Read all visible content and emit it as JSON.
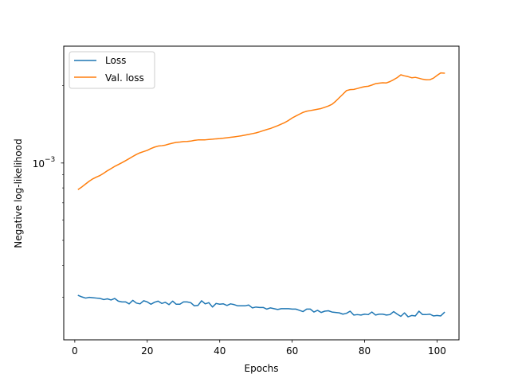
{
  "chart_data": {
    "type": "line",
    "title": "",
    "xlabel": "Epochs",
    "ylabel": "Negative log-likelihood",
    "yscale": "log",
    "xlim": [
      -3.05,
      106.05
    ],
    "ylim": [
      0.000205,
      0.00285
    ],
    "xticks": [
      0,
      20,
      40,
      60,
      80,
      100
    ],
    "xtick_labels": [
      "0",
      "20",
      "40",
      "60",
      "80",
      "100"
    ],
    "yticks": [
      0.001
    ],
    "ytick_labels": [
      "10",
      "−3"
    ],
    "legend": {
      "position": "upper-left"
    },
    "series": [
      {
        "name": "Loss",
        "color": "#1f77b4",
        "x": [
          1,
          2,
          3,
          4,
          5,
          6,
          7,
          8,
          9,
          10,
          11,
          12,
          13,
          14,
          15,
          16,
          17,
          18,
          19,
          20,
          21,
          22,
          23,
          24,
          25,
          26,
          27,
          28,
          29,
          30,
          31,
          32,
          33,
          34,
          35,
          36,
          37,
          38,
          39,
          40,
          41,
          42,
          43,
          44,
          45,
          46,
          47,
          48,
          49,
          50,
          51,
          52,
          53,
          54,
          55,
          56,
          57,
          58,
          59,
          60,
          61,
          62,
          63,
          64,
          65,
          66,
          67,
          68,
          69,
          70,
          71,
          72,
          73,
          74,
          75,
          76,
          77,
          78,
          79,
          80,
          81,
          82,
          83,
          84,
          85,
          86,
          87,
          88,
          89,
          90,
          91,
          92,
          93,
          94,
          95,
          96,
          97,
          98,
          99,
          100,
          101,
          102
        ],
        "y": [
          0.000305,
          0.000301,
          0.000298,
          0.0003,
          0.000299,
          0.000298,
          0.000297,
          0.000294,
          0.000296,
          0.000293,
          0.000297,
          0.00029,
          0.000288,
          0.000288,
          0.000283,
          0.000292,
          0.000285,
          0.000283,
          0.000291,
          0.000288,
          0.000282,
          0.000287,
          0.00029,
          0.000284,
          0.000287,
          0.000281,
          0.00029,
          0.000282,
          0.000282,
          0.000288,
          0.000288,
          0.000286,
          0.000278,
          0.000279,
          0.000291,
          0.000283,
          0.000286,
          0.000275,
          0.000284,
          0.000282,
          0.000283,
          0.000279,
          0.000283,
          0.000281,
          0.000278,
          0.000278,
          0.000278,
          0.00028,
          0.000273,
          0.000275,
          0.000274,
          0.000274,
          0.00027,
          0.000273,
          0.000271,
          0.000269,
          0.000271,
          0.000271,
          0.000271,
          0.00027,
          0.00027,
          0.000267,
          0.000264,
          0.00027,
          0.00027,
          0.000263,
          0.000267,
          0.000262,
          0.000265,
          0.000266,
          0.000263,
          0.000262,
          0.000261,
          0.000258,
          0.00026,
          0.000265,
          0.000256,
          0.000257,
          0.000256,
          0.000258,
          0.000257,
          0.000263,
          0.000256,
          0.000258,
          0.000258,
          0.000256,
          0.000257,
          0.000264,
          0.000258,
          0.000253,
          0.000261,
          0.000252,
          0.000255,
          0.000254,
          0.000265,
          0.000257,
          0.000257,
          0.000258,
          0.000254,
          0.000255,
          0.000254,
          0.000262
        ]
      },
      {
        "name": "Val. loss",
        "color": "#ff7f0e",
        "x": [
          1,
          2,
          3,
          4,
          5,
          6,
          7,
          8,
          9,
          10,
          11,
          12,
          13,
          14,
          15,
          16,
          17,
          18,
          19,
          20,
          21,
          22,
          23,
          24,
          25,
          26,
          27,
          28,
          29,
          30,
          31,
          32,
          33,
          34,
          35,
          36,
          37,
          38,
          39,
          40,
          41,
          42,
          43,
          44,
          45,
          46,
          47,
          48,
          49,
          50,
          51,
          52,
          53,
          54,
          55,
          56,
          57,
          58,
          59,
          60,
          61,
          62,
          63,
          64,
          65,
          66,
          67,
          68,
          69,
          70,
          71,
          72,
          73,
          74,
          75,
          76,
          77,
          78,
          79,
          80,
          81,
          82,
          83,
          84,
          85,
          86,
          87,
          88,
          89,
          90,
          91,
          92,
          93,
          94,
          95,
          96,
          97,
          98,
          99,
          100,
          101,
          102
        ],
        "y": [
          0.00079,
          0.000808,
          0.000829,
          0.00085,
          0.000868,
          0.000882,
          0.000895,
          0.000913,
          0.000933,
          0.000951,
          0.00097,
          0.000986,
          0.001003,
          0.001021,
          0.00104,
          0.00106,
          0.00108,
          0.001096,
          0.001108,
          0.00112,
          0.001138,
          0.001153,
          0.001164,
          0.001168,
          0.001174,
          0.001185,
          0.001195,
          0.001203,
          0.001207,
          0.001212,
          0.001213,
          0.001217,
          0.001225,
          0.00123,
          0.00123,
          0.001231,
          0.001235,
          0.001238,
          0.001242,
          0.001245,
          0.001249,
          0.001254,
          0.001259,
          0.001264,
          0.00127,
          0.001276,
          0.001284,
          0.001292,
          0.001301,
          0.00131,
          0.001322,
          0.001336,
          0.00135,
          0.001363,
          0.00138,
          0.001397,
          0.001417,
          0.001438,
          0.001465,
          0.001497,
          0.001523,
          0.001549,
          0.001574,
          0.001591,
          0.0016,
          0.001609,
          0.001619,
          0.00163,
          0.001648,
          0.001667,
          0.001693,
          0.001739,
          0.001796,
          0.001853,
          0.001914,
          0.00193,
          0.001934,
          0.00195,
          0.001968,
          0.001982,
          0.00199,
          0.002011,
          0.002036,
          0.002046,
          0.002053,
          0.00205,
          0.002075,
          0.00211,
          0.00215,
          0.002205,
          0.002184,
          0.002169,
          0.002147,
          0.002155,
          0.002138,
          0.002119,
          0.002109,
          0.00211,
          0.00214,
          0.002193,
          0.002243,
          0.002237
        ]
      }
    ]
  }
}
